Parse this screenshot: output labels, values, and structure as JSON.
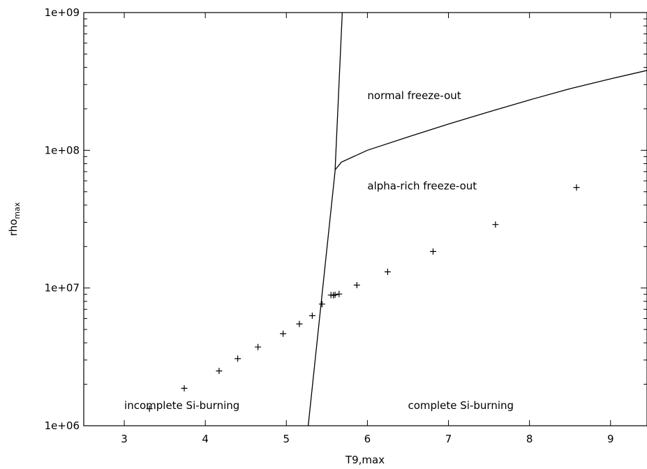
{
  "chart_data": {
    "type": "scatter",
    "title": "",
    "xlabel": "T9,max",
    "ylabel": {
      "base": "rho",
      "subscript": "max"
    },
    "x_range": [
      2.5,
      9.45
    ],
    "y_range": [
      1000000,
      1000000000
    ],
    "y_scale": "log",
    "grid": false,
    "x_ticks": [
      {
        "value": 3,
        "label": "3"
      },
      {
        "value": 4,
        "label": "4"
      },
      {
        "value": 5,
        "label": "5"
      },
      {
        "value": 6,
        "label": "6"
      },
      {
        "value": 7,
        "label": "7"
      },
      {
        "value": 8,
        "label": "8"
      },
      {
        "value": 9,
        "label": "9"
      }
    ],
    "y_ticks": [
      {
        "value": 1000000,
        "label": "1e+06"
      },
      {
        "value": 10000000,
        "label": "1e+07"
      },
      {
        "value": 100000000,
        "label": "1e+08"
      },
      {
        "value": 1000000000,
        "label": "1e+09"
      }
    ],
    "points": [
      {
        "x": 3.31,
        "y": 1330000
      },
      {
        "x": 3.74,
        "y": 1870000
      },
      {
        "x": 4.17,
        "y": 2500000
      },
      {
        "x": 4.4,
        "y": 3070000
      },
      {
        "x": 4.65,
        "y": 3730000
      },
      {
        "x": 4.96,
        "y": 4660000
      },
      {
        "x": 5.16,
        "y": 5490000
      },
      {
        "x": 5.32,
        "y": 6290000
      },
      {
        "x": 5.44,
        "y": 7640000
      },
      {
        "x": 5.55,
        "y": 8890000
      },
      {
        "x": 5.58,
        "y": 8850000
      },
      {
        "x": 5.6,
        "y": 8930000
      },
      {
        "x": 5.65,
        "y": 9040000
      },
      {
        "x": 5.87,
        "y": 10500000
      },
      {
        "x": 6.25,
        "y": 13100000
      },
      {
        "x": 6.81,
        "y": 18400000
      },
      {
        "x": 7.58,
        "y": 28900000
      },
      {
        "x": 8.58,
        "y": 53700000
      }
    ],
    "boundary_lines": [
      {
        "points": [
          {
            "x": 5.27,
            "y": 1000000
          },
          {
            "x": 5.6,
            "y": 70000000
          },
          {
            "x": 5.69,
            "y": 1000000000
          }
        ]
      },
      {
        "points": [
          {
            "x": 5.6,
            "y": 72000000
          },
          {
            "x": 5.68,
            "y": 82000000
          },
          {
            "x": 6.0,
            "y": 100000000
          },
          {
            "x": 6.5,
            "y": 125000000
          },
          {
            "x": 7.0,
            "y": 155000000
          },
          {
            "x": 7.5,
            "y": 190000000
          },
          {
            "x": 8.0,
            "y": 232000000
          },
          {
            "x": 8.5,
            "y": 280000000
          },
          {
            "x": 9.0,
            "y": 330000000
          },
          {
            "x": 9.45,
            "y": 380000000
          }
        ]
      }
    ],
    "annotations": [
      {
        "text": "normal freeze-out",
        "x": 6.0,
        "y": 250000000
      },
      {
        "text": "alpha-rich freeze-out",
        "x": 6.0,
        "y": 55000000
      },
      {
        "text": "incomplete Si-burning",
        "x": 3.0,
        "y": 1400000
      },
      {
        "text": "complete Si-burning",
        "x": 6.5,
        "y": 1400000
      }
    ]
  }
}
